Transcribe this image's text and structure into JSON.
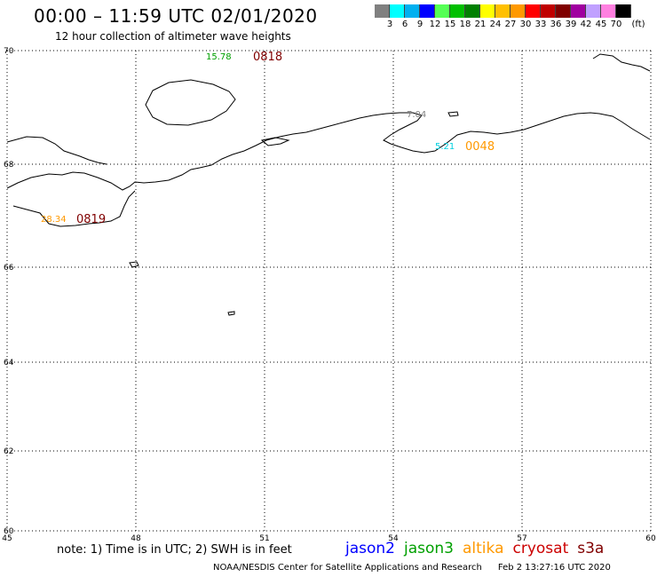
{
  "header": {
    "title": "00:00 – 11:59 UTC 02/01/2020",
    "subtitle": "12 hour collection of altimeter wave heights"
  },
  "legend": {
    "unit": "(ft)",
    "colors": [
      "#808080",
      "#00ffff",
      "#00b0f0",
      "#0000ff",
      "#55ff55",
      "#00c000",
      "#008000",
      "#ffff00",
      "#ffc000",
      "#ff9900",
      "#ff0000",
      "#c00000",
      "#800000",
      "#a000a0",
      "#c0a0ff",
      "#ff80e0",
      "#000000"
    ],
    "labels": [
      "3",
      "6",
      "9",
      "12",
      "15",
      "18",
      "21",
      "24",
      "27",
      "30",
      "33",
      "36",
      "39",
      "42",
      "45",
      "70"
    ]
  },
  "axes": {
    "lon_ticks": [
      "45",
      "48",
      "51",
      "54",
      "57",
      "60"
    ],
    "lat_ticks": [
      "70",
      "68",
      "66",
      "64",
      "62",
      "60"
    ]
  },
  "tracks": [
    {
      "swh": "15.78",
      "swh_color": "#00a000",
      "time": "0818",
      "time_color": "#800000"
    },
    {
      "swh": "7.04",
      "swh_color": "#808080",
      "time": "",
      "time_color": "#808080"
    },
    {
      "swh": "5.21",
      "swh_color": "#00d0e0",
      "time": "0048",
      "time_color": "#ff9900"
    },
    {
      "swh": "28.34",
      "swh_color": "#ff9900",
      "time": "0819",
      "time_color": "#800000"
    }
  ],
  "footer": {
    "note": "note: 1) Time is in UTC; 2) SWH is in feet",
    "missions": [
      {
        "name": "jason2",
        "color": "#0000ff"
      },
      {
        "name": "jason3",
        "color": "#00a000"
      },
      {
        "name": "altika",
        "color": "#ff9900"
      },
      {
        "name": "cryosat",
        "color": "#cc0000"
      },
      {
        "name": "s3a",
        "color": "#800000"
      }
    ],
    "credit": "NOAA/NESDIS Center for Satellite Applications and Research",
    "timestamp": "Feb  2 13:27:16 UTC 2020"
  }
}
